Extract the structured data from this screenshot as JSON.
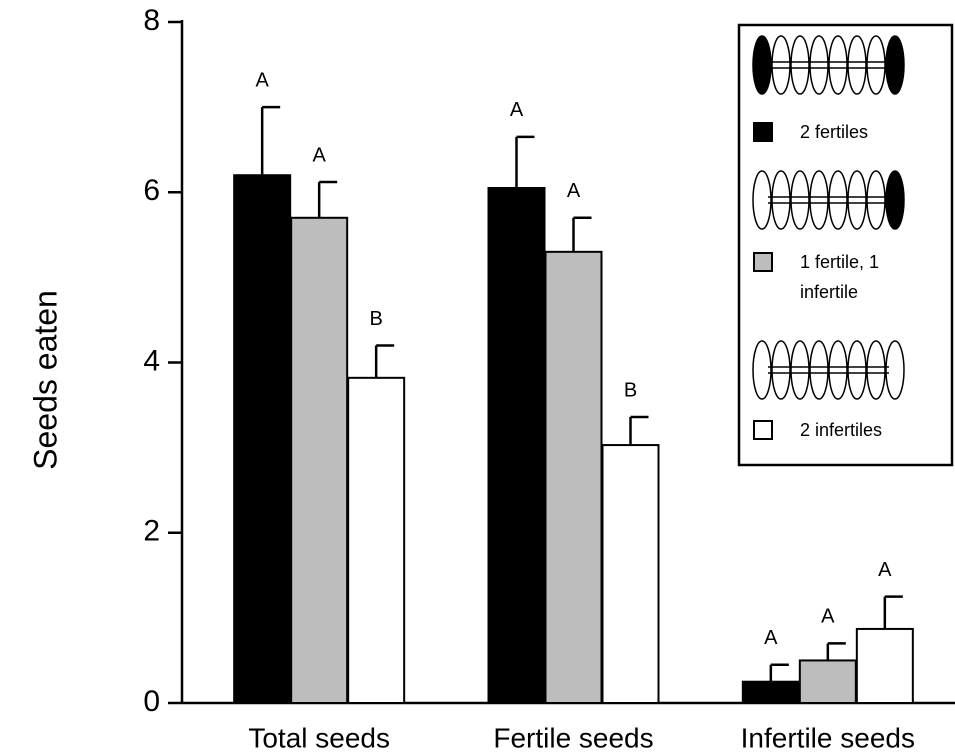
{
  "chart_data": {
    "type": "bar",
    "ylabel": "Seeds eaten",
    "categories": [
      "Total seeds",
      "Fertile seeds",
      "Infertile seeds"
    ],
    "series": [
      {
        "name": "2 fertiles",
        "color": "#000000",
        "values": [
          6.2,
          6.05,
          0.25
        ],
        "errors": [
          0.8,
          0.6,
          0.2
        ],
        "letters": [
          "A",
          "A",
          "A"
        ]
      },
      {
        "name": "1 fertile, 1 infertile",
        "color": "#bdbdbd",
        "values": [
          5.7,
          5.3,
          0.5
        ],
        "errors": [
          0.42,
          0.4,
          0.2
        ],
        "letters": [
          "A",
          "A",
          "A"
        ]
      },
      {
        "name": "2 infertiles",
        "color": "#ffffff",
        "values": [
          3.82,
          3.03,
          0.87
        ],
        "errors": [
          0.38,
          0.33,
          0.38
        ],
        "letters": [
          "B",
          "B",
          "A"
        ]
      }
    ],
    "ylim": [
      0,
      8
    ],
    "yticks": [
      0,
      2,
      4,
      6,
      8
    ],
    "grid": false,
    "legend": "upper right"
  }
}
